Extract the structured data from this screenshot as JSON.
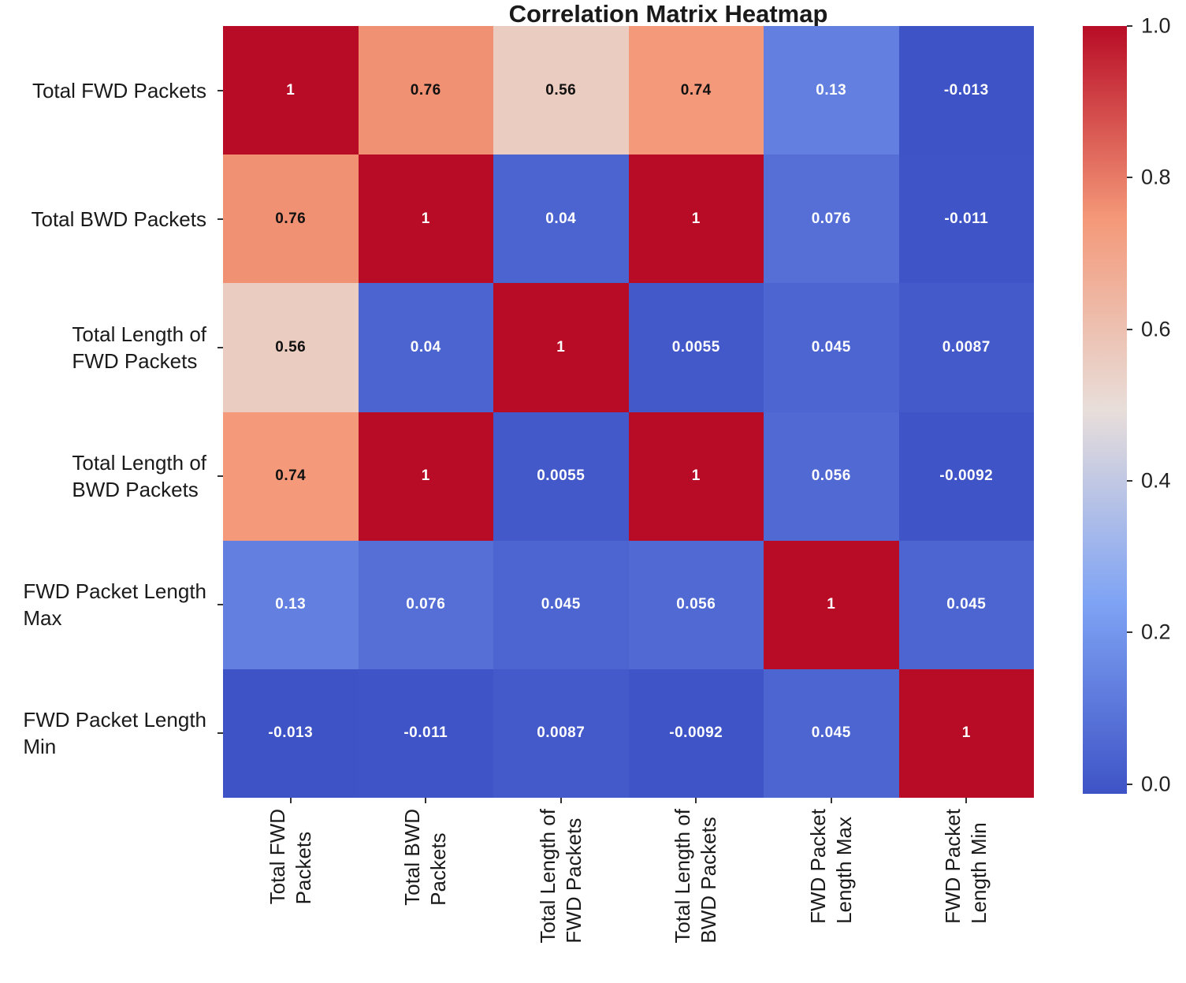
{
  "title": "Correlation Matrix Heatmap",
  "chart_data": {
    "type": "heatmap",
    "title": "Correlation Matrix Heatmap",
    "categories": [
      "Total FWD Packets",
      "Total BWD Packets",
      "Total Length of FWD Packets",
      "Total Length of BWD Packets",
      "FWD Packet Length Max",
      "FWD Packet Length Min"
    ],
    "row_labels_display": [
      "Total FWD Packets",
      "Total BWD Packets",
      "Total Length of\nFWD Packets",
      "Total Length of\nBWD Packets",
      "FWD Packet Length\nMax",
      "FWD Packet Length\nMin"
    ],
    "col_labels_display": [
      "Total FWD\nPackets",
      "Total BWD\nPackets",
      "Total Length of\nFWD Packets",
      "Total Length of\nBWD Packets",
      "FWD Packet\nLength Max",
      "FWD Packet\nLength Min"
    ],
    "matrix": [
      [
        1,
        0.76,
        0.56,
        0.74,
        0.13,
        -0.013
      ],
      [
        0.76,
        1,
        0.04,
        1,
        0.076,
        -0.011
      ],
      [
        0.56,
        0.04,
        1,
        0.0055,
        0.045,
        0.0087
      ],
      [
        0.74,
        1,
        0.0055,
        1,
        0.056,
        -0.0092
      ],
      [
        0.13,
        0.076,
        0.045,
        0.056,
        1,
        0.045
      ],
      [
        -0.013,
        -0.011,
        0.0087,
        -0.0092,
        0.045,
        1
      ]
    ],
    "cell_text": [
      [
        "1",
        "0.76",
        "0.56",
        "0.74",
        "0.13",
        "-0.013"
      ],
      [
        "0.76",
        "1",
        "0.04",
        "1",
        "0.076",
        "-0.011"
      ],
      [
        "0.56",
        "0.04",
        "1",
        "0.0055",
        "0.045",
        "0.0087"
      ],
      [
        "0.74",
        "1",
        "0.0055",
        "1",
        "0.056",
        "-0.0092"
      ],
      [
        "0.13",
        "0.076",
        "0.045",
        "0.056",
        "1",
        "0.045"
      ],
      [
        "-0.013",
        "-0.011",
        "0.0087",
        "-0.0092",
        "0.045",
        "1"
      ]
    ],
    "colormap": {
      "name": "coolwarm",
      "vmin": -0.013,
      "vmax": 1.0,
      "stops": [
        {
          "t": 0.0,
          "color": "#3E53C6"
        },
        {
          "t": 0.25,
          "color": "#7FA3F4"
        },
        {
          "t": 0.5,
          "color": "#E8DEDA"
        },
        {
          "t": 0.75,
          "color": "#F49878"
        },
        {
          "t": 1.0,
          "color": "#B80C26"
        }
      ],
      "cell_text_dark": "#111111",
      "cell_text_light": "#ffffff"
    },
    "colorbar_ticks": [
      "1.0",
      "0.8",
      "0.6",
      "0.4",
      "0.2",
      "0.0"
    ],
    "legend_position": "right",
    "grid": false,
    "background": "#ffffff"
  }
}
